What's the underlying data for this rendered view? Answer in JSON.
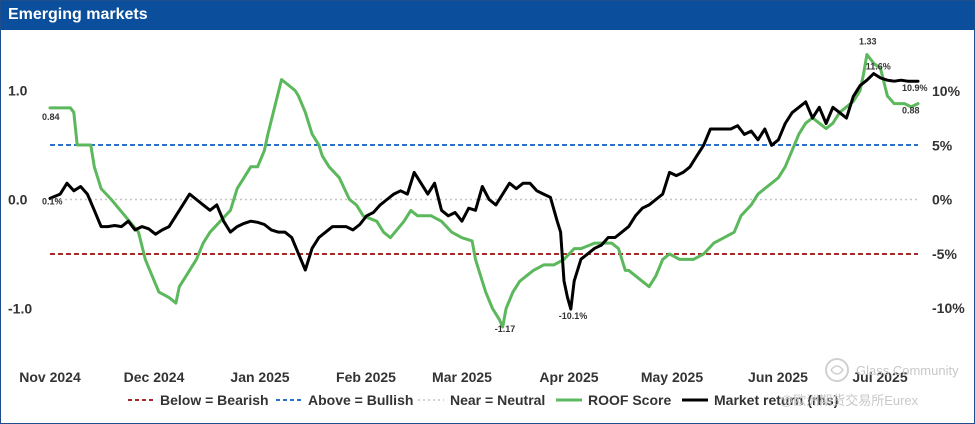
{
  "chart_data": {
    "type": "line",
    "title": "Emerging markets",
    "x_tick_labels": [
      "Nov 2024",
      "Dec 2024",
      "Jan 2025",
      "Feb 2025",
      "Mar 2025",
      "Apr 2025",
      "May 2025",
      "Jun 2025",
      "Jul 2025"
    ],
    "x_range_days": [
      0,
      255
    ],
    "left_axis": {
      "ticks": [
        1.0,
        0.0,
        -1.0
      ],
      "tick_labels": [
        "1.0",
        "0.0",
        "-1.0"
      ],
      "ylim": [
        -1.4,
        1.4
      ]
    },
    "right_axis": {
      "ticks": [
        10,
        5,
        0,
        -5,
        -10
      ],
      "tick_labels": [
        "10%",
        "5%",
        "0%",
        "-5%",
        "-10%"
      ],
      "ylim": [
        -13.2,
        13.2
      ]
    },
    "reference_lines": [
      {
        "name": "Below = Bearish",
        "value": -0.5,
        "color": "#a52a2a",
        "style": "dashed"
      },
      {
        "name": "Above = Bullish",
        "value": 0.5,
        "color": "#2a72c8",
        "style": "dashed"
      },
      {
        "name": "Near = Neutral",
        "value": 0.0,
        "color": "#c4c4c4",
        "style": "dotted"
      }
    ],
    "series": [
      {
        "name": "ROOF Score",
        "axis": "left",
        "color": "#5cb85c",
        "points": [
          [
            0,
            0.84
          ],
          [
            6,
            0.84
          ],
          [
            7,
            0.8
          ],
          [
            8,
            0.5
          ],
          [
            12,
            0.5
          ],
          [
            13,
            0.3
          ],
          [
            15,
            0.1
          ],
          [
            18,
            0.0
          ],
          [
            22,
            -0.15
          ],
          [
            26,
            -0.3
          ],
          [
            28,
            -0.55
          ],
          [
            30,
            -0.7
          ],
          [
            32,
            -0.85
          ],
          [
            35,
            -0.9
          ],
          [
            37,
            -0.95
          ],
          [
            38,
            -0.8
          ],
          [
            40,
            -0.7
          ],
          [
            43,
            -0.55
          ],
          [
            45,
            -0.4
          ],
          [
            47,
            -0.3
          ],
          [
            50,
            -0.2
          ],
          [
            53,
            -0.1
          ],
          [
            55,
            0.1
          ],
          [
            57,
            0.2
          ],
          [
            59,
            0.3
          ],
          [
            61,
            0.3
          ],
          [
            63,
            0.45
          ],
          [
            64,
            0.6
          ],
          [
            66,
            0.85
          ],
          [
            68,
            1.1
          ],
          [
            70,
            1.05
          ],
          [
            72,
            1.0
          ],
          [
            73,
            0.95
          ],
          [
            75,
            0.8
          ],
          [
            77,
            0.6
          ],
          [
            79,
            0.5
          ],
          [
            80,
            0.4
          ],
          [
            82,
            0.3
          ],
          [
            85,
            0.2
          ],
          [
            88,
            0.0
          ],
          [
            90,
            -0.05
          ],
          [
            92,
            -0.15
          ],
          [
            96,
            -0.2
          ],
          [
            98,
            -0.3
          ],
          [
            100,
            -0.35
          ],
          [
            104,
            -0.2
          ],
          [
            106,
            -0.1
          ],
          [
            108,
            -0.15
          ],
          [
            112,
            -0.15
          ],
          [
            115,
            -0.2
          ],
          [
            118,
            -0.3
          ],
          [
            121,
            -0.35
          ],
          [
            124,
            -0.38
          ],
          [
            125,
            -0.55
          ],
          [
            126,
            -0.65
          ],
          [
            128,
            -0.85
          ],
          [
            130,
            -1.0
          ],
          [
            132,
            -1.1
          ],
          [
            133,
            -1.17
          ],
          [
            134,
            -1.0
          ],
          [
            136,
            -0.85
          ],
          [
            138,
            -0.75
          ],
          [
            140,
            -0.7
          ],
          [
            142,
            -0.65
          ],
          [
            145,
            -0.6
          ],
          [
            148,
            -0.6
          ],
          [
            151,
            -0.55
          ],
          [
            154,
            -0.45
          ],
          [
            156,
            -0.45
          ],
          [
            160,
            -0.4
          ],
          [
            163,
            -0.4
          ],
          [
            165,
            -0.4
          ],
          [
            167,
            -0.45
          ],
          [
            169,
            -0.65
          ],
          [
            170,
            -0.65
          ],
          [
            172,
            -0.7
          ],
          [
            174,
            -0.75
          ],
          [
            176,
            -0.8
          ],
          [
            178,
            -0.7
          ],
          [
            180,
            -0.55
          ],
          [
            182,
            -0.5
          ],
          [
            185,
            -0.55
          ],
          [
            189,
            -0.55
          ],
          [
            192,
            -0.5
          ],
          [
            195,
            -0.4
          ],
          [
            198,
            -0.35
          ],
          [
            201,
            -0.3
          ],
          [
            203,
            -0.15
          ],
          [
            206,
            -0.05
          ],
          [
            208,
            0.05
          ],
          [
            210,
            0.1
          ],
          [
            212,
            0.15
          ],
          [
            214,
            0.2
          ],
          [
            216,
            0.3
          ],
          [
            218,
            0.45
          ],
          [
            220,
            0.6
          ],
          [
            222,
            0.7
          ],
          [
            224,
            0.75
          ],
          [
            226,
            0.7
          ],
          [
            228,
            0.65
          ],
          [
            230,
            0.7
          ],
          [
            232,
            0.8
          ],
          [
            234,
            0.85
          ],
          [
            236,
            0.9
          ],
          [
            238,
            1.0
          ],
          [
            239,
            1.15
          ],
          [
            240,
            1.33
          ],
          [
            242,
            1.25
          ],
          [
            244,
            1.2
          ],
          [
            246,
            0.95
          ],
          [
            248,
            0.88
          ],
          [
            251,
            0.88
          ],
          [
            253,
            0.85
          ],
          [
            255,
            0.88
          ]
        ],
        "annotations": [
          {
            "x": 0,
            "y": 0.84,
            "label": "0.84"
          },
          {
            "x": 133,
            "y": -1.17,
            "label": "-1.17"
          },
          {
            "x": 240,
            "y": 1.33,
            "label": "1.33"
          },
          {
            "x": 255,
            "y": 0.88,
            "label": "0.88"
          }
        ]
      },
      {
        "name": "Market return (rhs)",
        "axis": "right",
        "color": "#000000",
        "points": [
          [
            0,
            0.1
          ],
          [
            3,
            0.5
          ],
          [
            5,
            1.5
          ],
          [
            7,
            0.8
          ],
          [
            9,
            1.2
          ],
          [
            11,
            0.5
          ],
          [
            13,
            -1.0
          ],
          [
            15,
            -2.5
          ],
          [
            17,
            -2.5
          ],
          [
            19,
            -2.4
          ],
          [
            21,
            -2.5
          ],
          [
            23,
            -2.0
          ],
          [
            25,
            -2.8
          ],
          [
            27,
            -2.5
          ],
          [
            29,
            -2.7
          ],
          [
            31,
            -3.2
          ],
          [
            33,
            -2.8
          ],
          [
            35,
            -2.5
          ],
          [
            37,
            -1.5
          ],
          [
            39,
            -0.5
          ],
          [
            41,
            0.5
          ],
          [
            43,
            0.0
          ],
          [
            45,
            -0.5
          ],
          [
            47,
            -1.0
          ],
          [
            49,
            -0.5
          ],
          [
            51,
            -2.0
          ],
          [
            53,
            -3.0
          ],
          [
            55,
            -2.5
          ],
          [
            57,
            -2.2
          ],
          [
            59,
            -2.0
          ],
          [
            61,
            -2.1
          ],
          [
            63,
            -2.3
          ],
          [
            65,
            -2.8
          ],
          [
            67,
            -3.0
          ],
          [
            69,
            -3.0
          ],
          [
            71,
            -3.5
          ],
          [
            73,
            -5.0
          ],
          [
            75,
            -6.5
          ],
          [
            77,
            -4.5
          ],
          [
            79,
            -3.5
          ],
          [
            81,
            -3.0
          ],
          [
            83,
            -2.5
          ],
          [
            85,
            -2.5
          ],
          [
            87,
            -2.5
          ],
          [
            89,
            -2.8
          ],
          [
            91,
            -2.3
          ],
          [
            93,
            -1.5
          ],
          [
            95,
            -1.2
          ],
          [
            97,
            -0.5
          ],
          [
            99,
            0.0
          ],
          [
            101,
            0.5
          ],
          [
            103,
            0.8
          ],
          [
            105,
            0.5
          ],
          [
            107,
            2.5
          ],
          [
            109,
            1.5
          ],
          [
            111,
            0.5
          ],
          [
            113,
            1.5
          ],
          [
            115,
            -1.0
          ],
          [
            117,
            -1.5
          ],
          [
            119,
            -1.2
          ],
          [
            121,
            -2.0
          ],
          [
            123,
            -0.8
          ],
          [
            125,
            -1.0
          ],
          [
            127,
            1.2
          ],
          [
            129,
            0.0
          ],
          [
            131,
            -0.5
          ],
          [
            133,
            0.5
          ],
          [
            135,
            1.5
          ],
          [
            137,
            1.0
          ],
          [
            139,
            1.5
          ],
          [
            141,
            1.5
          ],
          [
            143,
            0.8
          ],
          [
            145,
            0.5
          ],
          [
            147,
            0.2
          ],
          [
            149,
            -2.0
          ],
          [
            150,
            -3.0
          ],
          [
            151,
            -7.5
          ],
          [
            152,
            -9.0
          ],
          [
            153,
            -10.1
          ],
          [
            154,
            -7.5
          ],
          [
            156,
            -5.5
          ],
          [
            158,
            -5.0
          ],
          [
            160,
            -4.5
          ],
          [
            162,
            -4.2
          ],
          [
            164,
            -3.5
          ],
          [
            166,
            -3.5
          ],
          [
            168,
            -3.0
          ],
          [
            170,
            -2.5
          ],
          [
            172,
            -1.5
          ],
          [
            174,
            -0.8
          ],
          [
            176,
            -0.5
          ],
          [
            178,
            0.0
          ],
          [
            180,
            0.5
          ],
          [
            182,
            2.5
          ],
          [
            184,
            2.2
          ],
          [
            186,
            2.5
          ],
          [
            188,
            3.0
          ],
          [
            190,
            4.0
          ],
          [
            192,
            5.0
          ],
          [
            194,
            6.5
          ],
          [
            196,
            6.5
          ],
          [
            198,
            6.5
          ],
          [
            200,
            6.5
          ],
          [
            202,
            6.8
          ],
          [
            204,
            6.0
          ],
          [
            206,
            6.3
          ],
          [
            208,
            5.5
          ],
          [
            210,
            6.5
          ],
          [
            212,
            5.0
          ],
          [
            214,
            5.5
          ],
          [
            216,
            7.0
          ],
          [
            218,
            8.0
          ],
          [
            220,
            8.5
          ],
          [
            222,
            9.0
          ],
          [
            224,
            7.5
          ],
          [
            226,
            8.5
          ],
          [
            228,
            7.0
          ],
          [
            230,
            8.5
          ],
          [
            232,
            8.0
          ],
          [
            234,
            7.5
          ],
          [
            236,
            9.5
          ],
          [
            238,
            10.5
          ],
          [
            240,
            11.0
          ],
          [
            242,
            11.6
          ],
          [
            244,
            11.2
          ],
          [
            246,
            11.0
          ],
          [
            248,
            10.9
          ],
          [
            250,
            11.0
          ],
          [
            252,
            10.9
          ],
          [
            255,
            10.9
          ]
        ],
        "annotations": [
          {
            "x": 0,
            "y": 0.1,
            "label": "0.1%"
          },
          {
            "x": 153,
            "y": -10.1,
            "label": "-10.1%"
          },
          {
            "x": 242,
            "y": 11.6,
            "label": "11.6%"
          },
          {
            "x": 255,
            "y": 10.9,
            "label": "10.9%"
          }
        ]
      }
    ],
    "legend": {
      "placement": "bottom",
      "entries": [
        "Below = Bearish",
        "Above = Bullish",
        "Near = Neutral",
        "ROOF Score",
        "Market return (rhs)"
      ]
    }
  },
  "watermark": {
    "community": "Glass Community",
    "brand": "@欧洲期货交易所Eurex"
  }
}
